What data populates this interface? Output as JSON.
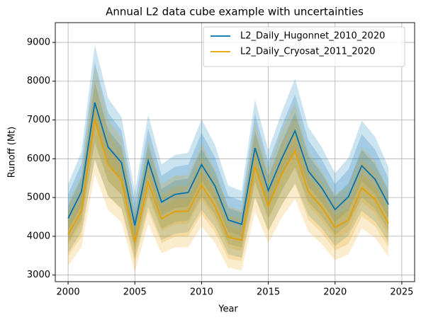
{
  "chart_data": {
    "type": "line",
    "title": "Annual L2 data cube example with uncertainties",
    "xlabel": "Year",
    "ylabel": "Runoff (Mt)",
    "x": [
      2000,
      2001,
      2002,
      2003,
      2004,
      2005,
      2006,
      2007,
      2008,
      2009,
      2010,
      2011,
      2012,
      2013,
      2014,
      2015,
      2016,
      2017,
      2018,
      2019,
      2020,
      2021,
      2022,
      2023,
      2024
    ],
    "series": [
      {
        "name": "L2_Daily_Hugonnet_2010_2020",
        "color": "#0072B2",
        "values": [
          4460,
          5150,
          7450,
          6300,
          5900,
          4280,
          5950,
          4880,
          5080,
          5130,
          5850,
          5300,
          4420,
          4310,
          6280,
          5180,
          6000,
          6720,
          5680,
          5250,
          4690,
          5020,
          5820,
          5470,
          4820
        ],
        "band_fractions": [
          0.07,
          0.14,
          0.2
        ]
      },
      {
        "name": "L2_Daily_Cryosat_2011_2020",
        "color": "#E69F00",
        "values": [
          4050,
          4650,
          7000,
          5850,
          5450,
          3850,
          5400,
          4450,
          4640,
          4650,
          5320,
          4780,
          3980,
          3900,
          5800,
          4780,
          5600,
          6200,
          5150,
          4750,
          4230,
          4420,
          5250,
          4950,
          4330
        ],
        "band_fractions": [
          0.07,
          0.14,
          0.2
        ]
      }
    ],
    "xlim": [
      1999.04,
      2025.96
    ],
    "ylim": [
      2830,
      9510
    ],
    "xticks": [
      2000,
      2005,
      2010,
      2015,
      2020,
      2025
    ],
    "yticks": [
      3000,
      4000,
      5000,
      6000,
      7000,
      8000,
      9000
    ],
    "grid": true,
    "legend": "upper right"
  }
}
